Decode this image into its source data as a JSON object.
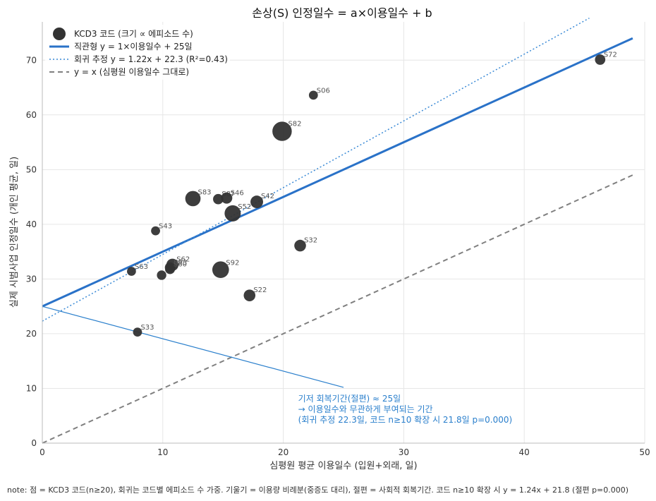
{
  "chart_data": {
    "type": "scatter",
    "title": "손상(S) 인정일수 = a×이용일수 + b",
    "xlabel": "심평원 평균 이용일수 (입원+외래, 일)",
    "ylabel": "실제 시범사업 인정일수 (개인 평균, 일)",
    "xlim": [
      0,
      50
    ],
    "ylim": [
      0,
      77
    ],
    "xticks": [
      0,
      10,
      20,
      30,
      40,
      50
    ],
    "yticks": [
      0,
      10,
      20,
      30,
      40,
      50,
      60,
      70
    ],
    "grid": true,
    "legend_position": "top-left",
    "legend": [
      {
        "kind": "marker",
        "label": "KCD3 코드 (크기 ∝ 에피소드 수)",
        "color": "#333333"
      },
      {
        "kind": "solid",
        "label": "직관형  y = 1×이용일수 + 25일",
        "color": "#2a72c8"
      },
      {
        "kind": "dotted",
        "label": "회귀 추정  y = 1.22x + 22.3  (R²=0.43)",
        "color": "#3a8ad6"
      },
      {
        "kind": "dashed",
        "label": "y = x (심평원 이용일수 그대로)",
        "color": "#808080"
      }
    ],
    "lines": [
      {
        "kind": "solid",
        "slope": 1,
        "intercept": 25,
        "x_range": [
          0,
          49
        ],
        "color": "#2a72c8"
      },
      {
        "kind": "dotted",
        "slope": 1.22,
        "intercept": 22.3,
        "x_range": [
          0,
          45.4
        ],
        "color": "#3a8ad6"
      },
      {
        "kind": "dashed",
        "slope": 1,
        "intercept": 0,
        "x_range": [
          0,
          49.2
        ],
        "color": "#808080"
      }
    ],
    "points": [
      {
        "label": "S72",
        "x": 46.3,
        "y": 70.1,
        "size": 1.2
      },
      {
        "label": "S06",
        "x": 22.5,
        "y": 63.6,
        "size": 0.9
      },
      {
        "label": "S82",
        "x": 19.9,
        "y": 57.0,
        "size": 3.2
      },
      {
        "label": "S83",
        "x": 12.5,
        "y": 44.7,
        "size": 2.3
      },
      {
        "label": "S8?",
        "x": 14.6,
        "y": 44.6,
        "size": 1.2
      },
      {
        "label": "S46",
        "x": 15.3,
        "y": 44.8,
        "size": 1.4
      },
      {
        "label": "S42",
        "x": 17.8,
        "y": 44.1,
        "size": 1.7
      },
      {
        "label": "S52",
        "x": 15.8,
        "y": 42.0,
        "size": 2.5
      },
      {
        "label": "S43",
        "x": 9.4,
        "y": 38.8,
        "size": 0.9
      },
      {
        "label": "S32",
        "x": 21.4,
        "y": 36.1,
        "size": 1.5
      },
      {
        "label": "S62",
        "x": 10.8,
        "y": 32.6,
        "size": 1.6
      },
      {
        "label": "S93",
        "x": 10.6,
        "y": 32.1,
        "size": 1.2
      },
      {
        "label": "S60",
        "x": 10.6,
        "y": 31.8,
        "size": 1.1
      },
      {
        "label": "S92",
        "x": 14.8,
        "y": 31.7,
        "size": 2.6
      },
      {
        "label": "S63",
        "x": 7.4,
        "y": 31.4,
        "size": 0.9
      },
      {
        "label": "",
        "x": 9.9,
        "y": 30.7,
        "size": 1.0
      },
      {
        "label": "S22",
        "x": 17.2,
        "y": 27.0,
        "size": 1.5
      },
      {
        "label": "S33",
        "x": 7.9,
        "y": 20.3,
        "size": 0.9
      }
    ],
    "annotation": {
      "lines": [
        "기저 회복기간(절편) ≈ 25일",
        "→ 이용일수와 무관하게 부여되는 기간",
        "(회귀 추정 22.3일, 코드 n≥10 확장 시 21.8일 p=0.000)"
      ],
      "text_xy": [
        21.0,
        9.0
      ],
      "arrow_from": [
        25.0,
        10.2
      ],
      "arrow_to": [
        0,
        25
      ],
      "color": "#2a7fcc"
    },
    "note": "note: 점 = KCD3 코드(n≥20), 회귀는 코드별 에피소드 수 가중. 기울기 = 이용량 비례분(중증도 대리), 절편 = 사회적 회복기간. 코드 n≥10 확장 시 y = 1.24x + 21.8 (절편 p=0.000)"
  }
}
